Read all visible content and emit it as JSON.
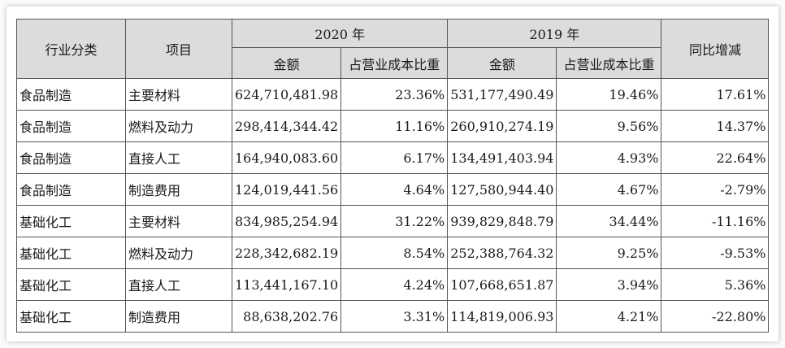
{
  "header": {
    "industry_label": "行业分类",
    "item_label": "项目",
    "year_2020": "2020 年",
    "year_2019": "2019 年",
    "yoy_label": "同比增减",
    "amount_2020": "金额",
    "share_2020": "占营业成本比重",
    "amount_2019": "金额",
    "share_2019": "占营业成本比重"
  },
  "rows": [
    {
      "industry": "食品制造",
      "item": "主要材料",
      "amt2020": "624,710,481.98",
      "pct2020": "23.36%",
      "amt2019": "531,177,490.49",
      "pct2019": "19.46%",
      "yoy": "17.61%"
    },
    {
      "industry": "食品制造",
      "item": "燃料及动力",
      "amt2020": "298,414,344.42",
      "pct2020": "11.16%",
      "amt2019": "260,910,274.19",
      "pct2019": "9.56%",
      "yoy": "14.37%"
    },
    {
      "industry": "食品制造",
      "item": "直接人工",
      "amt2020": "164,940,083.60",
      "pct2020": "6.17%",
      "amt2019": "134,491,403.94",
      "pct2019": "4.93%",
      "yoy": "22.64%"
    },
    {
      "industry": "食品制造",
      "item": "制造费用",
      "amt2020": "124,019,441.56",
      "pct2020": "4.64%",
      "amt2019": "127,580,944.40",
      "pct2019": "4.67%",
      "yoy": "-2.79%"
    },
    {
      "industry": "基础化工",
      "item": "主要材料",
      "amt2020": "834,985,254.94",
      "pct2020": "31.22%",
      "amt2019": "939,829,848.79",
      "pct2019": "34.44%",
      "yoy": "-11.16%"
    },
    {
      "industry": "基础化工",
      "item": "燃料及动力",
      "amt2020": "228,342,682.19",
      "pct2020": "8.54%",
      "amt2019": "252,388,764.32",
      "pct2019": "9.25%",
      "yoy": "-9.53%"
    },
    {
      "industry": "基础化工",
      "item": "直接人工",
      "amt2020": "113,441,167.10",
      "pct2020": "4.24%",
      "amt2019": "107,668,651.87",
      "pct2019": "3.94%",
      "yoy": "5.36%"
    },
    {
      "industry": "基础化工",
      "item": "制造费用",
      "amt2020": "88,638,202.76",
      "pct2020": "3.31%",
      "amt2019": "114,819,006.93",
      "pct2019": "4.21%",
      "yoy": "-22.80%"
    }
  ]
}
